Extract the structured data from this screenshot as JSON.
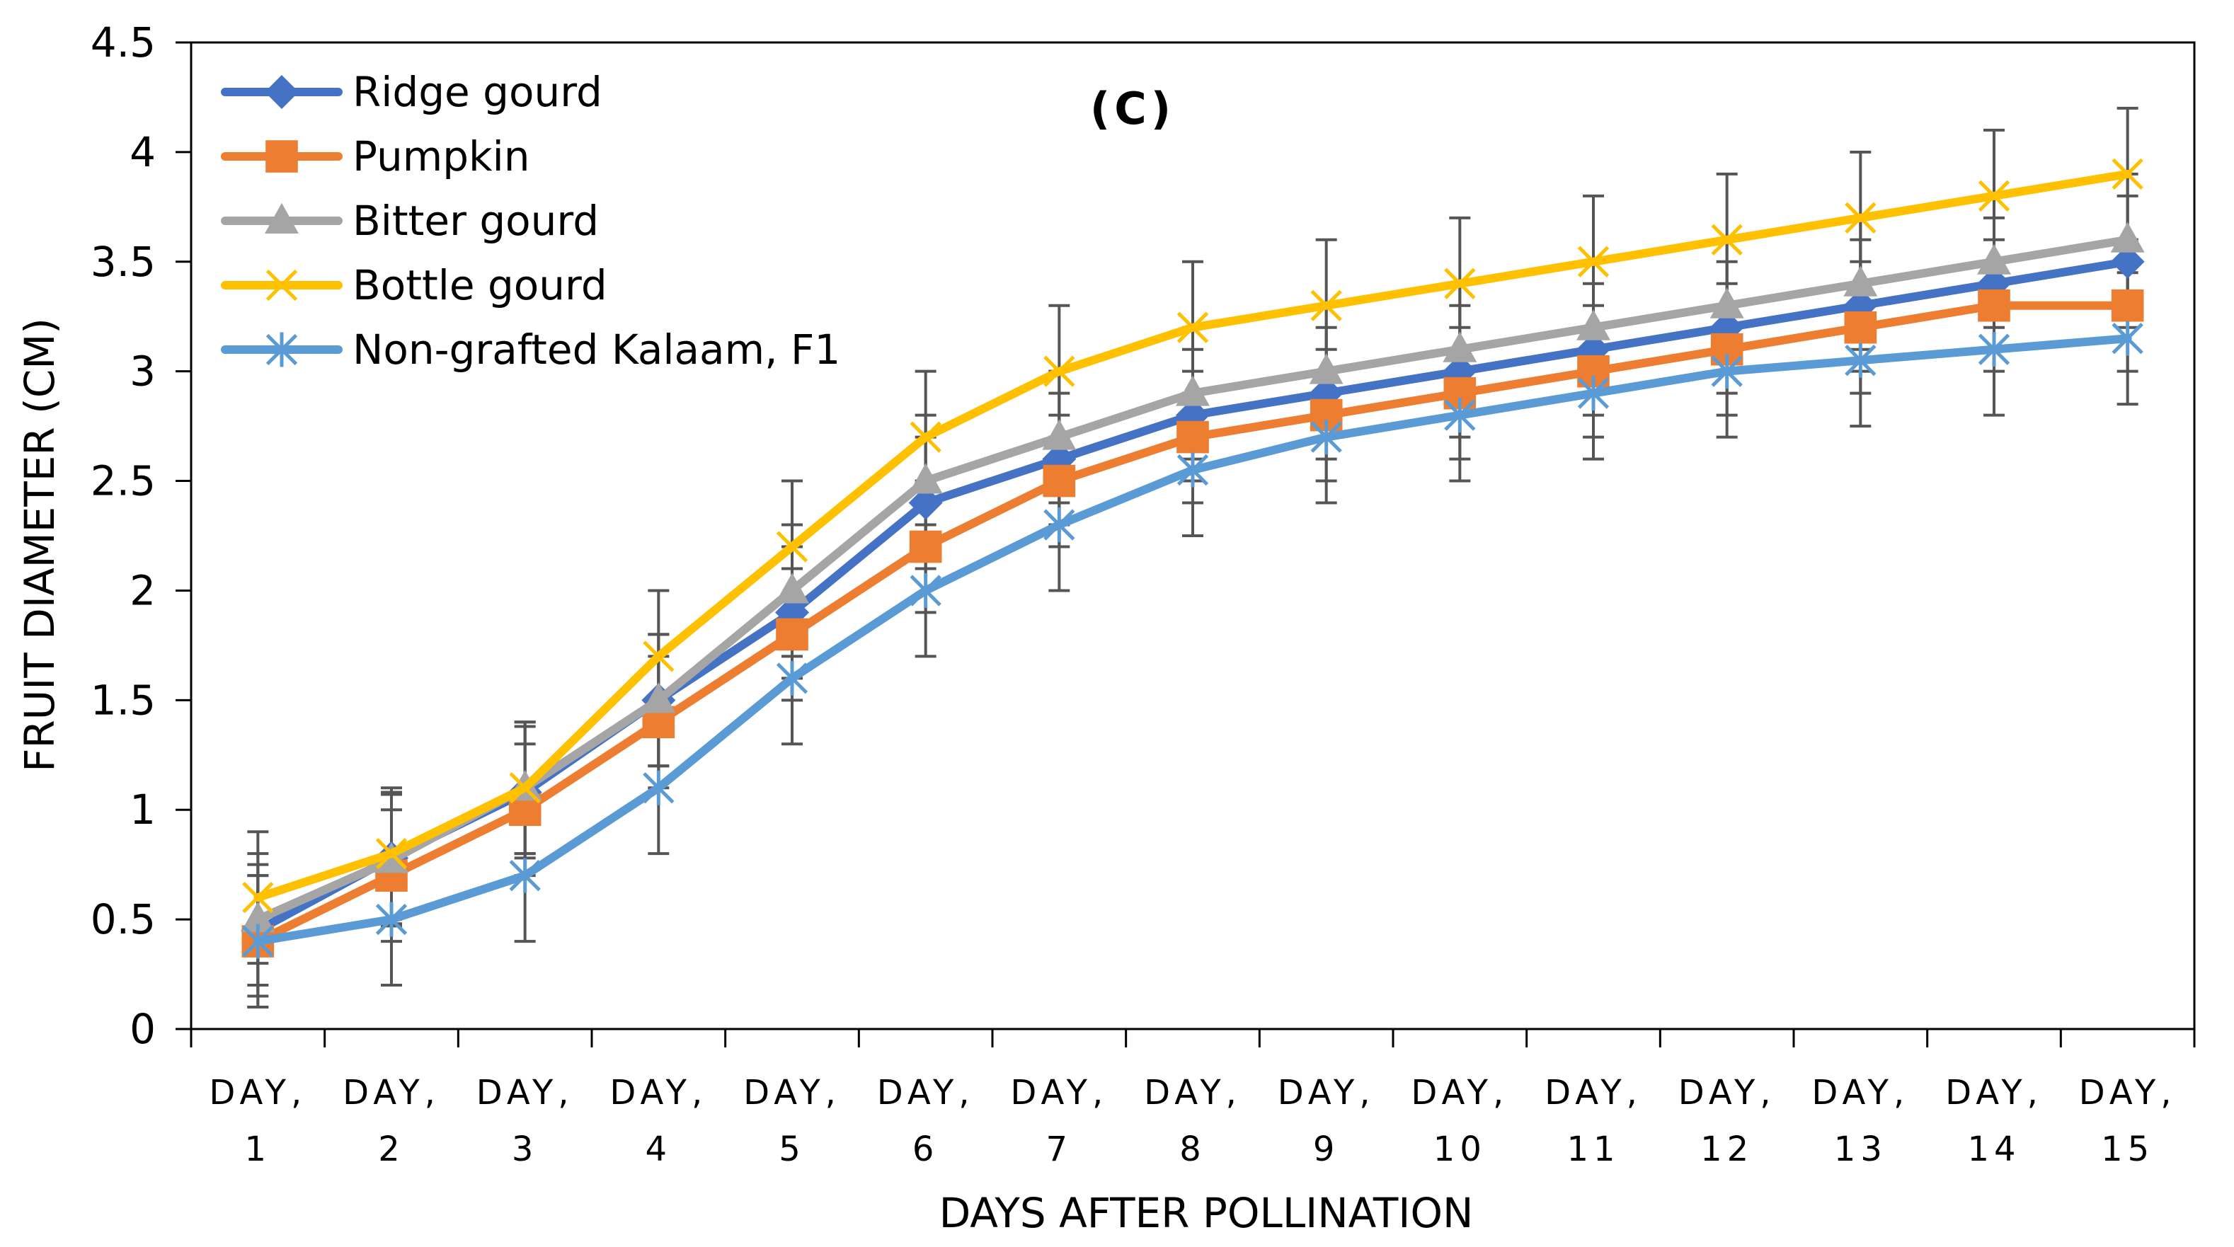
{
  "chart_data": {
    "type": "line",
    "title": "(C)",
    "xlabel": "DAYS AFTER POLLINATION",
    "ylabel": "FRUIT DIAMETER (CM)",
    "ylim": [
      0,
      4.5
    ],
    "yticks": [
      0,
      0.5,
      1,
      1.5,
      2,
      2.5,
      3,
      3.5,
      4,
      4.5
    ],
    "ytick_labels": [
      "0",
      "0.5",
      "1",
      "1.5",
      "2",
      "2.5",
      "3",
      "3.5",
      "4",
      "4.5"
    ],
    "categories": [
      {
        "line1": "DAY,",
        "line2": "1"
      },
      {
        "line1": "DAY,",
        "line2": "2"
      },
      {
        "line1": "DAY,",
        "line2": "3"
      },
      {
        "line1": "DAY,",
        "line2": "4"
      },
      {
        "line1": "DAY,",
        "line2": "5"
      },
      {
        "line1": "DAY,",
        "line2": "6"
      },
      {
        "line1": "DAY,",
        "line2": "7"
      },
      {
        "line1": "DAY,",
        "line2": "8"
      },
      {
        "line1": "DAY,",
        "line2": "9"
      },
      {
        "line1": "DAY,",
        "line2": "10"
      },
      {
        "line1": "DAY,",
        "line2": "11"
      },
      {
        "line1": "DAY,",
        "line2": "12"
      },
      {
        "line1": "DAY,",
        "line2": "13"
      },
      {
        "line1": "DAY,",
        "line2": "14"
      },
      {
        "line1": "DAY,",
        "line2": "15"
      }
    ],
    "legend_position": "top-left",
    "error_bar_half_width": 0.3,
    "series": [
      {
        "name": "Ridge gourd",
        "color": "#4472C4",
        "marker": "diamond",
        "values": [
          0.45,
          0.78,
          1.08,
          1.5,
          1.9,
          2.4,
          2.6,
          2.8,
          2.9,
          3.0,
          3.1,
          3.2,
          3.3,
          3.4,
          3.5
        ]
      },
      {
        "name": "Pumpkin",
        "color": "#ED7D31",
        "marker": "square",
        "values": [
          0.4,
          0.7,
          1.0,
          1.4,
          1.8,
          2.2,
          2.5,
          2.7,
          2.8,
          2.9,
          3.0,
          3.1,
          3.2,
          3.3,
          3.3
        ]
      },
      {
        "name": "Bitter gourd",
        "color": "#A5A5A5",
        "marker": "triangle",
        "values": [
          0.5,
          0.77,
          1.1,
          1.5,
          2.0,
          2.5,
          2.7,
          2.9,
          3.0,
          3.1,
          3.2,
          3.3,
          3.4,
          3.5,
          3.6
        ]
      },
      {
        "name": "Bottle gourd",
        "color": "#FFC000",
        "marker": "x",
        "values": [
          0.6,
          0.8,
          1.1,
          1.7,
          2.2,
          2.7,
          3.0,
          3.2,
          3.3,
          3.4,
          3.5,
          3.6,
          3.7,
          3.8,
          3.9
        ]
      },
      {
        "name": "Non-grafted Kalaam, F1",
        "color": "#5B9BD5",
        "marker": "star",
        "values": [
          0.4,
          0.5,
          0.7,
          1.1,
          1.6,
          2.0,
          2.3,
          2.55,
          2.7,
          2.8,
          2.9,
          3.0,
          3.05,
          3.1,
          3.15
        ]
      }
    ]
  }
}
